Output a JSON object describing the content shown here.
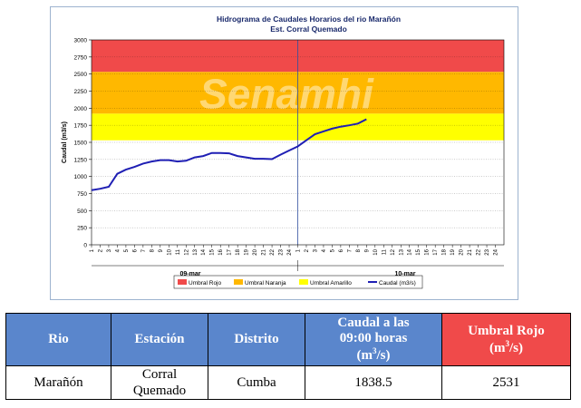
{
  "chart_data": {
    "type": "line",
    "title": "Hidrograma de Caudales Horarios del rio Marañón",
    "subtitle": "Est. Corral Quemado",
    "ylabel": "Caudal  (m3/s)",
    "ylim": [
      0,
      3000
    ],
    "yticks": [
      "0",
      "250",
      "500",
      "750",
      "1000",
      "1250",
      "1500",
      "1750",
      "2000",
      "2250",
      "2500",
      "2750",
      "3000"
    ],
    "xticks_day1": [
      "1",
      "2",
      "3",
      "4",
      "5",
      "6",
      "7",
      "8",
      "9",
      "10",
      "11",
      "12",
      "13",
      "14",
      "15",
      "16",
      "17",
      "18",
      "19",
      "20",
      "21",
      "22",
      "23",
      "24"
    ],
    "xticks_day2": [
      "1",
      "2",
      "3",
      "4",
      "5",
      "6",
      "7",
      "8",
      "9",
      "10",
      "11",
      "12",
      "13",
      "14",
      "15",
      "16",
      "17",
      "18",
      "19",
      "20",
      "21",
      "22",
      "23",
      "24"
    ],
    "day_labels": [
      "09-mar",
      "10-mar"
    ],
    "watermark": "Senamhi",
    "grid": true,
    "thresholds": [
      {
        "name": "Umbral Rojo",
        "from": 2531,
        "to": 3000,
        "color": "#f04a4a"
      },
      {
        "name": "Umbral Naranja",
        "from": 1920,
        "to": 2531,
        "color": "#ffb800"
      },
      {
        "name": "Umbral Amarillo",
        "from": 1530,
        "to": 1920,
        "color": "#ffff00"
      }
    ],
    "series": [
      {
        "name": "Caudal (m3/s)",
        "color": "#1f1fb4",
        "x": [
          1,
          2,
          3,
          4,
          5,
          6,
          7,
          8,
          9,
          10,
          11,
          12,
          13,
          14,
          15,
          16,
          17,
          18,
          19,
          20,
          21,
          22,
          23,
          24,
          25,
          26,
          27,
          28,
          29,
          30,
          31,
          32,
          33
        ],
        "values": [
          800,
          820,
          850,
          1040,
          1100,
          1140,
          1190,
          1220,
          1240,
          1240,
          1220,
          1230,
          1280,
          1300,
          1345,
          1345,
          1340,
          1300,
          1280,
          1260,
          1260,
          1255,
          1320,
          1380,
          1440,
          1530,
          1620,
          1660,
          1700,
          1730,
          1750,
          1775,
          1838.5
        ]
      }
    ],
    "legend": [
      "Umbral Rojo",
      "Umbral Naranja",
      "Umbral Amarillo",
      "Caudal (m3/s)"
    ],
    "legend_position": "bottom"
  },
  "table": {
    "headers": [
      "Rio",
      "Estación",
      "Distrito",
      "Caudal a las 09:00 horas (m3/s)",
      "Umbral Rojo (m3/s)"
    ],
    "row": [
      "Marañón",
      "Corral Quemado",
      "Cumba",
      "1838.5",
      "2531"
    ]
  }
}
